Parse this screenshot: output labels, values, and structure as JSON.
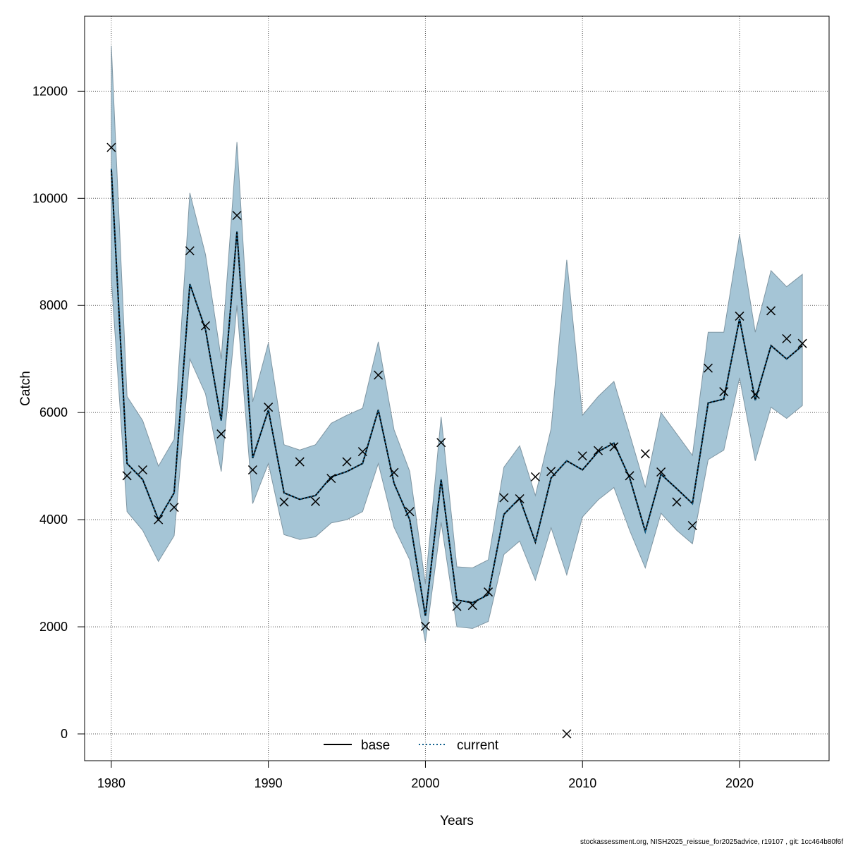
{
  "chart_data": {
    "type": "line",
    "xlabel": "Years",
    "ylabel": "Catch",
    "xlim": [
      1978.3,
      2025.7
    ],
    "ylim": [
      -500,
      13400
    ],
    "x_ticks": [
      1980,
      1990,
      2000,
      2010,
      2020
    ],
    "y_ticks": [
      0,
      2000,
      4000,
      6000,
      8000,
      10000,
      12000
    ],
    "grid": true,
    "legend_position": "bottom-center",
    "colors": {
      "band": "#a5c5d6",
      "band_edge": "#7f96a3",
      "base": "#000000",
      "current": "#0e5f8c",
      "observed": "#000000",
      "grid": "#555555"
    },
    "years": [
      1980,
      1981,
      1982,
      1983,
      1984,
      1985,
      1986,
      1987,
      1988,
      1989,
      1990,
      1991,
      1992,
      1993,
      1994,
      1995,
      1996,
      1997,
      1998,
      1999,
      2000,
      2001,
      2002,
      2003,
      2004,
      2005,
      2006,
      2007,
      2008,
      2009,
      2010,
      2011,
      2012,
      2013,
      2014,
      2015,
      2016,
      2017,
      2018,
      2019,
      2020,
      2021,
      2022,
      2023,
      2024
    ],
    "series": [
      {
        "name": "base",
        "style": "solid",
        "values": [
          10550,
          5050,
          4750,
          4000,
          4500,
          8400,
          7550,
          5850,
          9380,
          5150,
          6050,
          4500,
          4380,
          4450,
          4800,
          4900,
          5050,
          6050,
          4680,
          4000,
          2200,
          4750,
          2500,
          2450,
          2600,
          4100,
          4400,
          3580,
          4780,
          5100,
          4930,
          5270,
          5430,
          4780,
          3780,
          4850,
          4580,
          4300,
          6180,
          6250,
          7750,
          6230,
          7250,
          7000,
          7250
        ]
      },
      {
        "name": "current",
        "style": "dotted",
        "values": [
          10550,
          5050,
          4750,
          4000,
          4500,
          8400,
          7550,
          5850,
          9380,
          5150,
          6050,
          4500,
          4380,
          4450,
          4800,
          4900,
          5050,
          6050,
          4680,
          4000,
          2200,
          4750,
          2500,
          2450,
          2600,
          4100,
          4400,
          3580,
          4780,
          5100,
          4930,
          5270,
          5430,
          4780,
          3780,
          4850,
          4580,
          4300,
          6180,
          6250,
          7750,
          6230,
          7250,
          7000,
          7250
        ]
      }
    ],
    "confidence_band": {
      "upper": [
        12850,
        6300,
        5850,
        5000,
        5500,
        10100,
        8950,
        7000,
        11050,
        6200,
        7300,
        5400,
        5300,
        5400,
        5800,
        5950,
        6080,
        7320,
        5680,
        4900,
        2800,
        5920,
        3120,
        3100,
        3250,
        4980,
        5380,
        4450,
        5700,
        8850,
        5950,
        6300,
        6580,
        5600,
        4600,
        6000,
        5600,
        5200,
        7500,
        7500,
        9320,
        7500,
        8650,
        8350,
        8580
      ]
    },
    "band_lower": [
      8500,
      4150,
      3800,
      3220,
      3700,
      7000,
      6350,
      4900,
      8000,
      4300,
      5050,
      3720,
      3630,
      3680,
      3940,
      4000,
      4150,
      5050,
      3860,
      3250,
      1720,
      3950,
      2000,
      1970,
      2100,
      3350,
      3600,
      2870,
      3850,
      2970,
      4050,
      4370,
      4600,
      3800,
      3100,
      4120,
      3800,
      3550,
      5120,
      5300,
      6650,
      5100,
      6100,
      5890,
      6130
    ],
    "observed": [
      10950,
      4820,
      4930,
      4000,
      4230,
      9020,
      7620,
      5600,
      9680,
      4930,
      6100,
      4330,
      5080,
      4340,
      4770,
      5080,
      5270,
      6700,
      4880,
      4150,
      2010,
      5440,
      2380,
      2400,
      2650,
      4410,
      4390,
      4800,
      4900,
      0,
      5190,
      5290,
      5360,
      4820,
      5230,
      4890,
      4330,
      3890,
      6830,
      6390,
      7800,
      6340,
      7900,
      7380,
      7290
    ]
  },
  "legend": [
    {
      "label": "base",
      "style": "solid"
    },
    {
      "label": "current",
      "style": "dotted"
    }
  ],
  "footer": "stockassessment.org, NISH2025_reissue_for2025advice, r19107 , git: 1cc464b80f6f"
}
